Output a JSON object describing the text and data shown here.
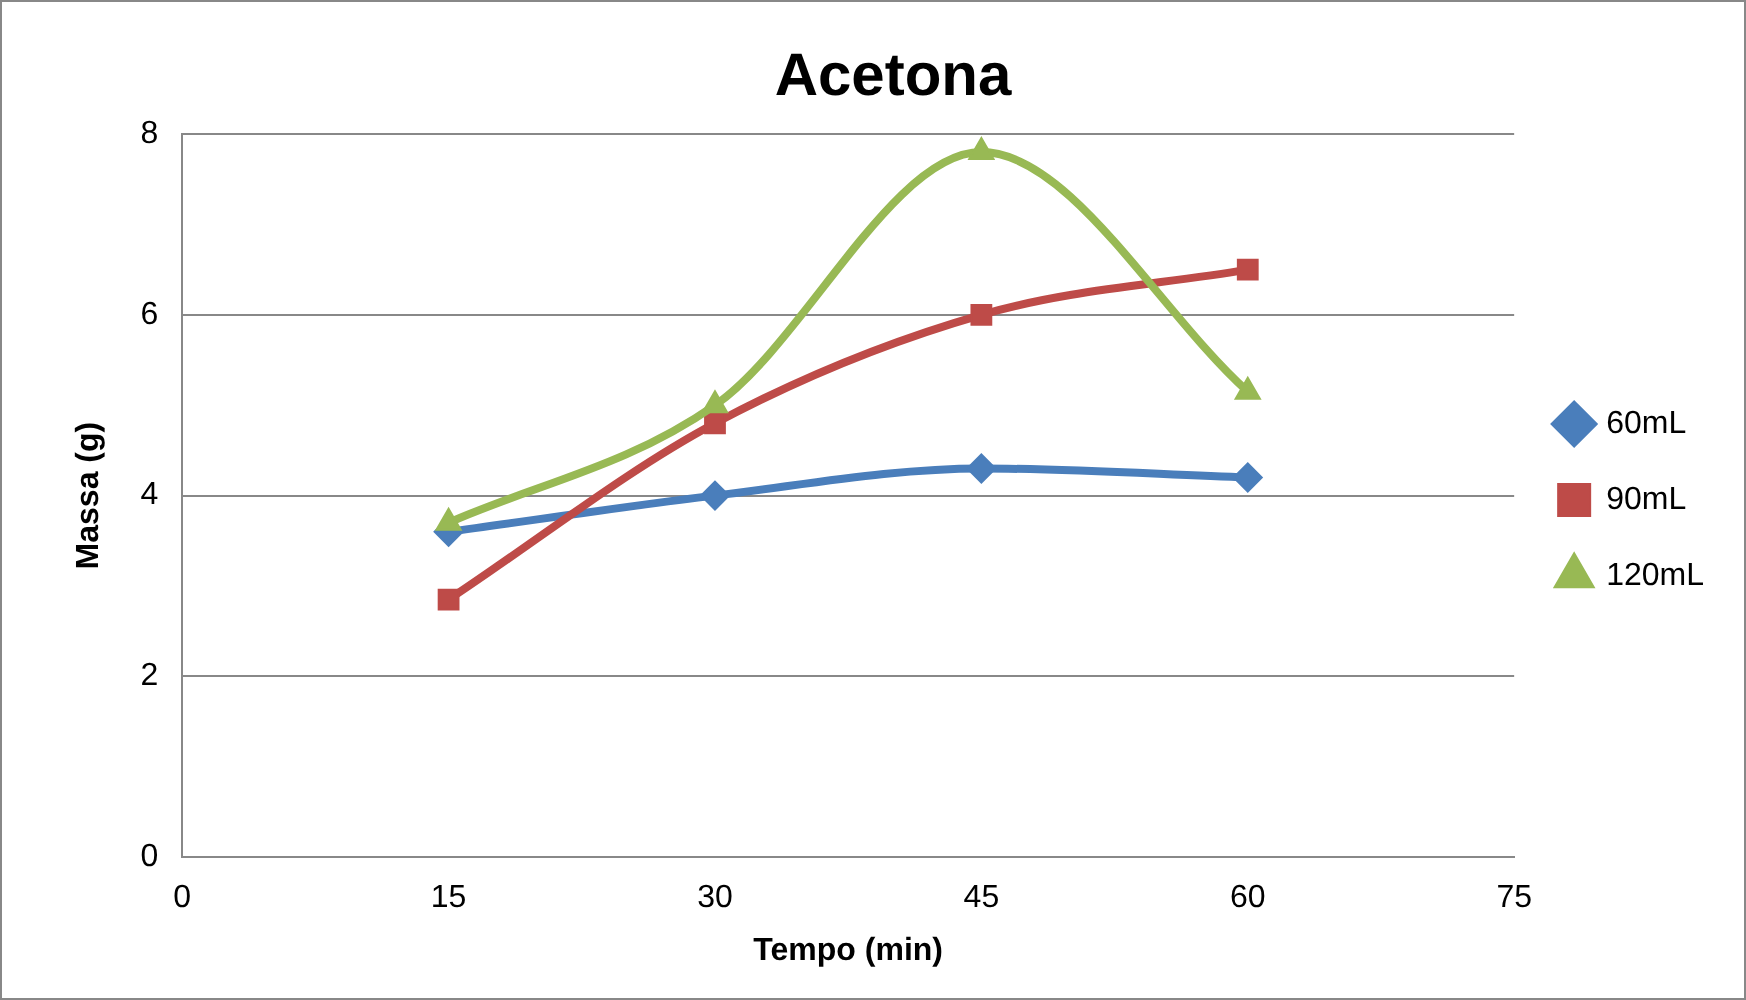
{
  "chart_data": {
    "type": "line",
    "title": "Acetona",
    "xlabel": "Tempo (min)",
    "ylabel": "Massa (g)",
    "x": [
      15,
      30,
      45,
      60
    ],
    "series": [
      {
        "name": "60mL",
        "color": "#4a7ebb",
        "marker": "diamond",
        "values": [
          3.6,
          4.0,
          4.3,
          4.2
        ]
      },
      {
        "name": "90mL",
        "color": "#be4b48",
        "marker": "square",
        "values": [
          2.85,
          4.8,
          6.0,
          6.5
        ]
      },
      {
        "name": "120mL",
        "color": "#98b954",
        "marker": "triangle",
        "values": [
          3.7,
          5.0,
          7.8,
          5.15
        ]
      }
    ],
    "xlim": [
      0,
      75
    ],
    "xticks": [
      0,
      15,
      30,
      45,
      60,
      75
    ],
    "ylim": [
      0,
      8
    ],
    "yticks": [
      0,
      2,
      4,
      6,
      8
    ],
    "grid": "y",
    "legend": "right"
  }
}
